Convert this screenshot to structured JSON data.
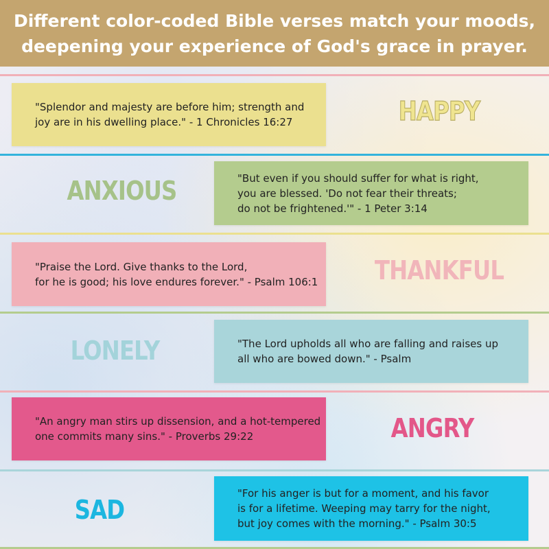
{
  "header": {
    "line1": "Different color-coded Bible verses match your moods,",
    "line2": "deepening your experience of God's grace in prayer."
  },
  "moods": [
    {
      "mood": "HAPPY",
      "verse_lines": [
        "\"Splendor and majesty are before him; strength and",
        "joy are in his dwelling place.\" - 1 Chronicles 16:27"
      ],
      "box_color": "#ebe08f",
      "label_color": "#e9e07f",
      "divider_color": "#33b3dc"
    },
    {
      "mood": "ANXIOUS",
      "verse_lines": [
        "\"But even if you should suffer for what is right,",
        "you are blessed. 'Do not fear their threats;",
        "do not be frightened.'\" - 1 Peter 3:14"
      ],
      "box_color": "#b4cc8e",
      "label_color": "#a6c289",
      "divider_color": "#ebe08f"
    },
    {
      "mood": "THANKFUL",
      "verse_lines": [
        "\"Praise the Lord. Give thanks to the Lord,",
        "for he is good; his love endures forever.\" - Psalm 106:1"
      ],
      "box_color": "#f1b0b8",
      "label_color": "#f1b5ba",
      "divider_color": "#b4cc8e"
    },
    {
      "mood": "LONELY",
      "verse_lines": [
        "\"The Lord upholds all who are falling and raises up",
        "all who are bowed down.\" - Psalm"
      ],
      "box_color": "#a9d5da",
      "label_color": "#a3d3da",
      "divider_color": "#f1b0b8"
    },
    {
      "mood": "ANGRY",
      "verse_lines": [
        "\"An angry man stirs up dissension, and a hot-tempered",
        "one commits many sins.\" - Proverbs 29:22"
      ],
      "box_color": "#e3598c",
      "label_color": "#e35789",
      "divider_color": "#a9d5da"
    },
    {
      "mood": "SAD",
      "verse_lines": [
        "\"For his anger is but for a moment, and his favor",
        "is for a lifetime. Weeping may tarry for the night,",
        "but joy comes with the morning.\" - Psalm 30:5"
      ],
      "box_color": "#1ec2e6",
      "label_color": "#1cb6e0",
      "divider_color": "#e3598c"
    }
  ],
  "bottom_divider_color": "#b4cc8e"
}
